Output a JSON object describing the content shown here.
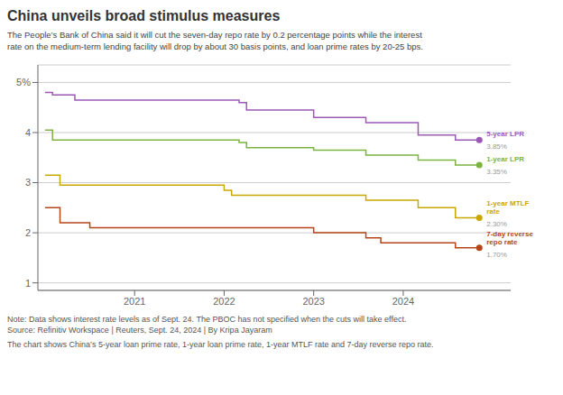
{
  "chart_data": {
    "type": "line",
    "line_style": "step",
    "marker": "end",
    "grid": true,
    "title": "China unveils broad stimulus measures",
    "subtitle": "The People’s Bank of China said it will cut the seven-day repo rate by 0.2 percentage points while the interest\nrate on the medium-term lending facility will drop by about 30 basis points, and loan prime rates by 20-25 bps.",
    "note": "Note: Data shows interest rate levels as of Sept. 24. The PBOC has not specified when the cuts will take effect.\nSource: Refinitiv Workspace | Reuters, Sept. 24, 2024 | By Kripa Jayaram",
    "footer": "The chart shows China’s 5-year loan prime rate, 1-year loan prime rate, 1-year MTLF rate and 7-day reverse repo rate.",
    "xlim": [
      2019.92,
      2025.2
    ],
    "xticks": [
      2021,
      2022,
      2023,
      2024
    ],
    "ylim": [
      0.85,
      5.35
    ],
    "yticks": [
      1,
      2,
      3,
      4,
      {
        "value": 5,
        "label": "5%"
      }
    ],
    "series": [
      {
        "name": "5-year LPR",
        "color": "#9b59b6",
        "x": [
          2020.0,
          2020.083,
          2020.333,
          2021.0,
          2022.167,
          2022.25,
          2023.0,
          2023.583,
          2024.167,
          2024.583,
          2024.85
        ],
        "values": [
          4.8,
          4.75,
          4.65,
          4.65,
          4.6,
          4.45,
          4.3,
          4.2,
          3.95,
          3.85,
          3.85
        ],
        "value_labels": [
          null,
          null,
          null,
          null,
          null,
          null,
          null,
          null,
          null,
          null,
          "3.85%"
        ]
      },
      {
        "name": "1-year LPR",
        "color": "#7cb342",
        "x": [
          2020.0,
          2020.0833,
          2020.25,
          2021.0,
          2022.167,
          2022.25,
          2023.0,
          2023.583,
          2024.167,
          2024.583,
          2024.85
        ],
        "values": [
          4.05,
          3.85,
          3.85,
          3.85,
          3.8,
          3.7,
          3.65,
          3.55,
          3.45,
          3.35,
          3.35
        ],
        "value_labels": [
          null,
          null,
          null,
          null,
          null,
          null,
          null,
          null,
          null,
          null,
          "3.35%"
        ]
      },
      {
        "name": "1-year MTLF\nrate",
        "color": "#c8a800",
        "x": [
          2020.0,
          2020.083,
          2020.167,
          2020.5,
          2022.0,
          2022.083,
          2023.0,
          2023.583,
          2024.167,
          2024.583,
          2024.85
        ],
        "values": [
          3.15,
          3.15,
          2.95,
          2.95,
          2.85,
          2.75,
          2.75,
          2.65,
          2.5,
          2.3,
          2.3
        ],
        "value_labels": [
          null,
          null,
          null,
          null,
          null,
          null,
          null,
          null,
          null,
          null,
          "2.30%"
        ]
      },
      {
        "name": "7-day reverse\nrepo rate",
        "color": "#b5451b",
        "x": [
          2020.0,
          2020.083,
          2020.167,
          2020.5,
          2021.0,
          2022.0,
          2023.0,
          2023.583,
          2023.75,
          2024.583,
          2024.85
        ],
        "values": [
          2.5,
          2.5,
          2.2,
          2.1,
          2.1,
          2.1,
          2.0,
          1.9,
          1.8,
          1.7,
          1.7
        ],
        "value_labels": [
          null,
          null,
          null,
          null,
          null,
          null,
          null,
          null,
          null,
          null,
          "1.70%"
        ]
      }
    ]
  }
}
